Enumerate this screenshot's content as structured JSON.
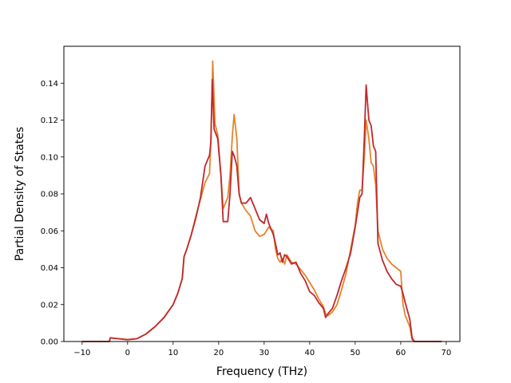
{
  "chart_data": {
    "type": "line",
    "title": "",
    "xlabel": "Frequency (THz)",
    "ylabel": "Partial Density of States",
    "xlim": [
      -14,
      73
    ],
    "ylim": [
      0,
      0.16
    ],
    "xticks": [
      -10,
      0,
      10,
      20,
      30,
      40,
      50,
      60,
      70
    ],
    "yticks": [
      0.0,
      0.02,
      0.04,
      0.06,
      0.08,
      0.1,
      0.12,
      0.14
    ],
    "grid": false,
    "legend": "none",
    "series": [
      {
        "color": "#e6832a",
        "points": [
          [
            -10,
            0.0
          ],
          [
            -4,
            0.0
          ],
          [
            -3.8,
            0.002
          ],
          [
            -2,
            0.0015
          ],
          [
            0,
            0.001
          ],
          [
            2,
            0.0015
          ],
          [
            4,
            0.004
          ],
          [
            6,
            0.008
          ],
          [
            8,
            0.013
          ],
          [
            10,
            0.02
          ],
          [
            11,
            0.026
          ],
          [
            12,
            0.034
          ],
          [
            12.4,
            0.046
          ],
          [
            13,
            0.05
          ],
          [
            14,
            0.058
          ],
          [
            15,
            0.068
          ],
          [
            16,
            0.077
          ],
          [
            17,
            0.086
          ],
          [
            18,
            0.091
          ],
          [
            18.3,
            0.11
          ],
          [
            18.7,
            0.152
          ],
          [
            19.2,
            0.118
          ],
          [
            19.8,
            0.112
          ],
          [
            20.5,
            0.09
          ],
          [
            21,
            0.072
          ],
          [
            22,
            0.078
          ],
          [
            22.5,
            0.09
          ],
          [
            23,
            0.111
          ],
          [
            23.4,
            0.123
          ],
          [
            24,
            0.11
          ],
          [
            24.5,
            0.08
          ],
          [
            25,
            0.075
          ],
          [
            26,
            0.071
          ],
          [
            27,
            0.068
          ],
          [
            28,
            0.06
          ],
          [
            29,
            0.057
          ],
          [
            30,
            0.058
          ],
          [
            31,
            0.062
          ],
          [
            32,
            0.06
          ],
          [
            32.5,
            0.05
          ],
          [
            33,
            0.045
          ],
          [
            33.5,
            0.043
          ],
          [
            34,
            0.045
          ],
          [
            34.5,
            0.042
          ],
          [
            35,
            0.047
          ],
          [
            36,
            0.043
          ],
          [
            37,
            0.042
          ],
          [
            38,
            0.039
          ],
          [
            39,
            0.036
          ],
          [
            40,
            0.032
          ],
          [
            41,
            0.028
          ],
          [
            42,
            0.023
          ],
          [
            43,
            0.019
          ],
          [
            43.5,
            0.015
          ],
          [
            44,
            0.014
          ],
          [
            45,
            0.016
          ],
          [
            46,
            0.02
          ],
          [
            47,
            0.028
          ],
          [
            48,
            0.037
          ],
          [
            49,
            0.05
          ],
          [
            50,
            0.063
          ],
          [
            50.5,
            0.075
          ],
          [
            51,
            0.082
          ],
          [
            51.5,
            0.082
          ],
          [
            52,
            0.1
          ],
          [
            52.4,
            0.12
          ],
          [
            53,
            0.11
          ],
          [
            53.5,
            0.097
          ],
          [
            54,
            0.095
          ],
          [
            54.5,
            0.085
          ],
          [
            55,
            0.06
          ],
          [
            56,
            0.05
          ],
          [
            57,
            0.045
          ],
          [
            58,
            0.042
          ],
          [
            59,
            0.04
          ],
          [
            60,
            0.038
          ],
          [
            60.5,
            0.02
          ],
          [
            61,
            0.014
          ],
          [
            62,
            0.008
          ],
          [
            62.5,
            0.001
          ],
          [
            63,
            0.0
          ],
          [
            69,
            0.0
          ]
        ]
      },
      {
        "color": "#c0282d",
        "points": [
          [
            -10,
            0.0
          ],
          [
            -4,
            0.0
          ],
          [
            -3.8,
            0.002
          ],
          [
            -2,
            0.0015
          ],
          [
            0,
            0.001
          ],
          [
            2,
            0.0015
          ],
          [
            4,
            0.004
          ],
          [
            6,
            0.008
          ],
          [
            8,
            0.013
          ],
          [
            10,
            0.02
          ],
          [
            11,
            0.026
          ],
          [
            12,
            0.034
          ],
          [
            12.4,
            0.046
          ],
          [
            13,
            0.05
          ],
          [
            14,
            0.058
          ],
          [
            15,
            0.067
          ],
          [
            16,
            0.078
          ],
          [
            17,
            0.095
          ],
          [
            18,
            0.101
          ],
          [
            18.3,
            0.108
          ],
          [
            18.6,
            0.142
          ],
          [
            19,
            0.115
          ],
          [
            19.8,
            0.11
          ],
          [
            20.5,
            0.09
          ],
          [
            21,
            0.065
          ],
          [
            22,
            0.065
          ],
          [
            22.5,
            0.08
          ],
          [
            23,
            0.103
          ],
          [
            23.5,
            0.1
          ],
          [
            24,
            0.095
          ],
          [
            24.5,
            0.08
          ],
          [
            25,
            0.075
          ],
          [
            26,
            0.075
          ],
          [
            27,
            0.078
          ],
          [
            28,
            0.072
          ],
          [
            29,
            0.066
          ],
          [
            30,
            0.064
          ],
          [
            30.5,
            0.069
          ],
          [
            31,
            0.064
          ],
          [
            32,
            0.058
          ],
          [
            32.5,
            0.053
          ],
          [
            33,
            0.047
          ],
          [
            33.5,
            0.048
          ],
          [
            34,
            0.043
          ],
          [
            34.5,
            0.047
          ],
          [
            35,
            0.046
          ],
          [
            36,
            0.042
          ],
          [
            37,
            0.043
          ],
          [
            38,
            0.037
          ],
          [
            39,
            0.033
          ],
          [
            40,
            0.027
          ],
          [
            41,
            0.025
          ],
          [
            42,
            0.021
          ],
          [
            43,
            0.018
          ],
          [
            43.5,
            0.013
          ],
          [
            44,
            0.015
          ],
          [
            45,
            0.018
          ],
          [
            46,
            0.025
          ],
          [
            47,
            0.033
          ],
          [
            48,
            0.04
          ],
          [
            49,
            0.048
          ],
          [
            50,
            0.062
          ],
          [
            51,
            0.078
          ],
          [
            51.5,
            0.08
          ],
          [
            52,
            0.11
          ],
          [
            52.4,
            0.139
          ],
          [
            53,
            0.12
          ],
          [
            53.5,
            0.117
          ],
          [
            54,
            0.106
          ],
          [
            54.5,
            0.103
          ],
          [
            55,
            0.053
          ],
          [
            56,
            0.044
          ],
          [
            57,
            0.038
          ],
          [
            58,
            0.034
          ],
          [
            59,
            0.031
          ],
          [
            60,
            0.03
          ],
          [
            60.5,
            0.026
          ],
          [
            61,
            0.021
          ],
          [
            62,
            0.012
          ],
          [
            62.5,
            0.002
          ],
          [
            63,
            0.0
          ],
          [
            69,
            0.0
          ]
        ]
      }
    ]
  }
}
